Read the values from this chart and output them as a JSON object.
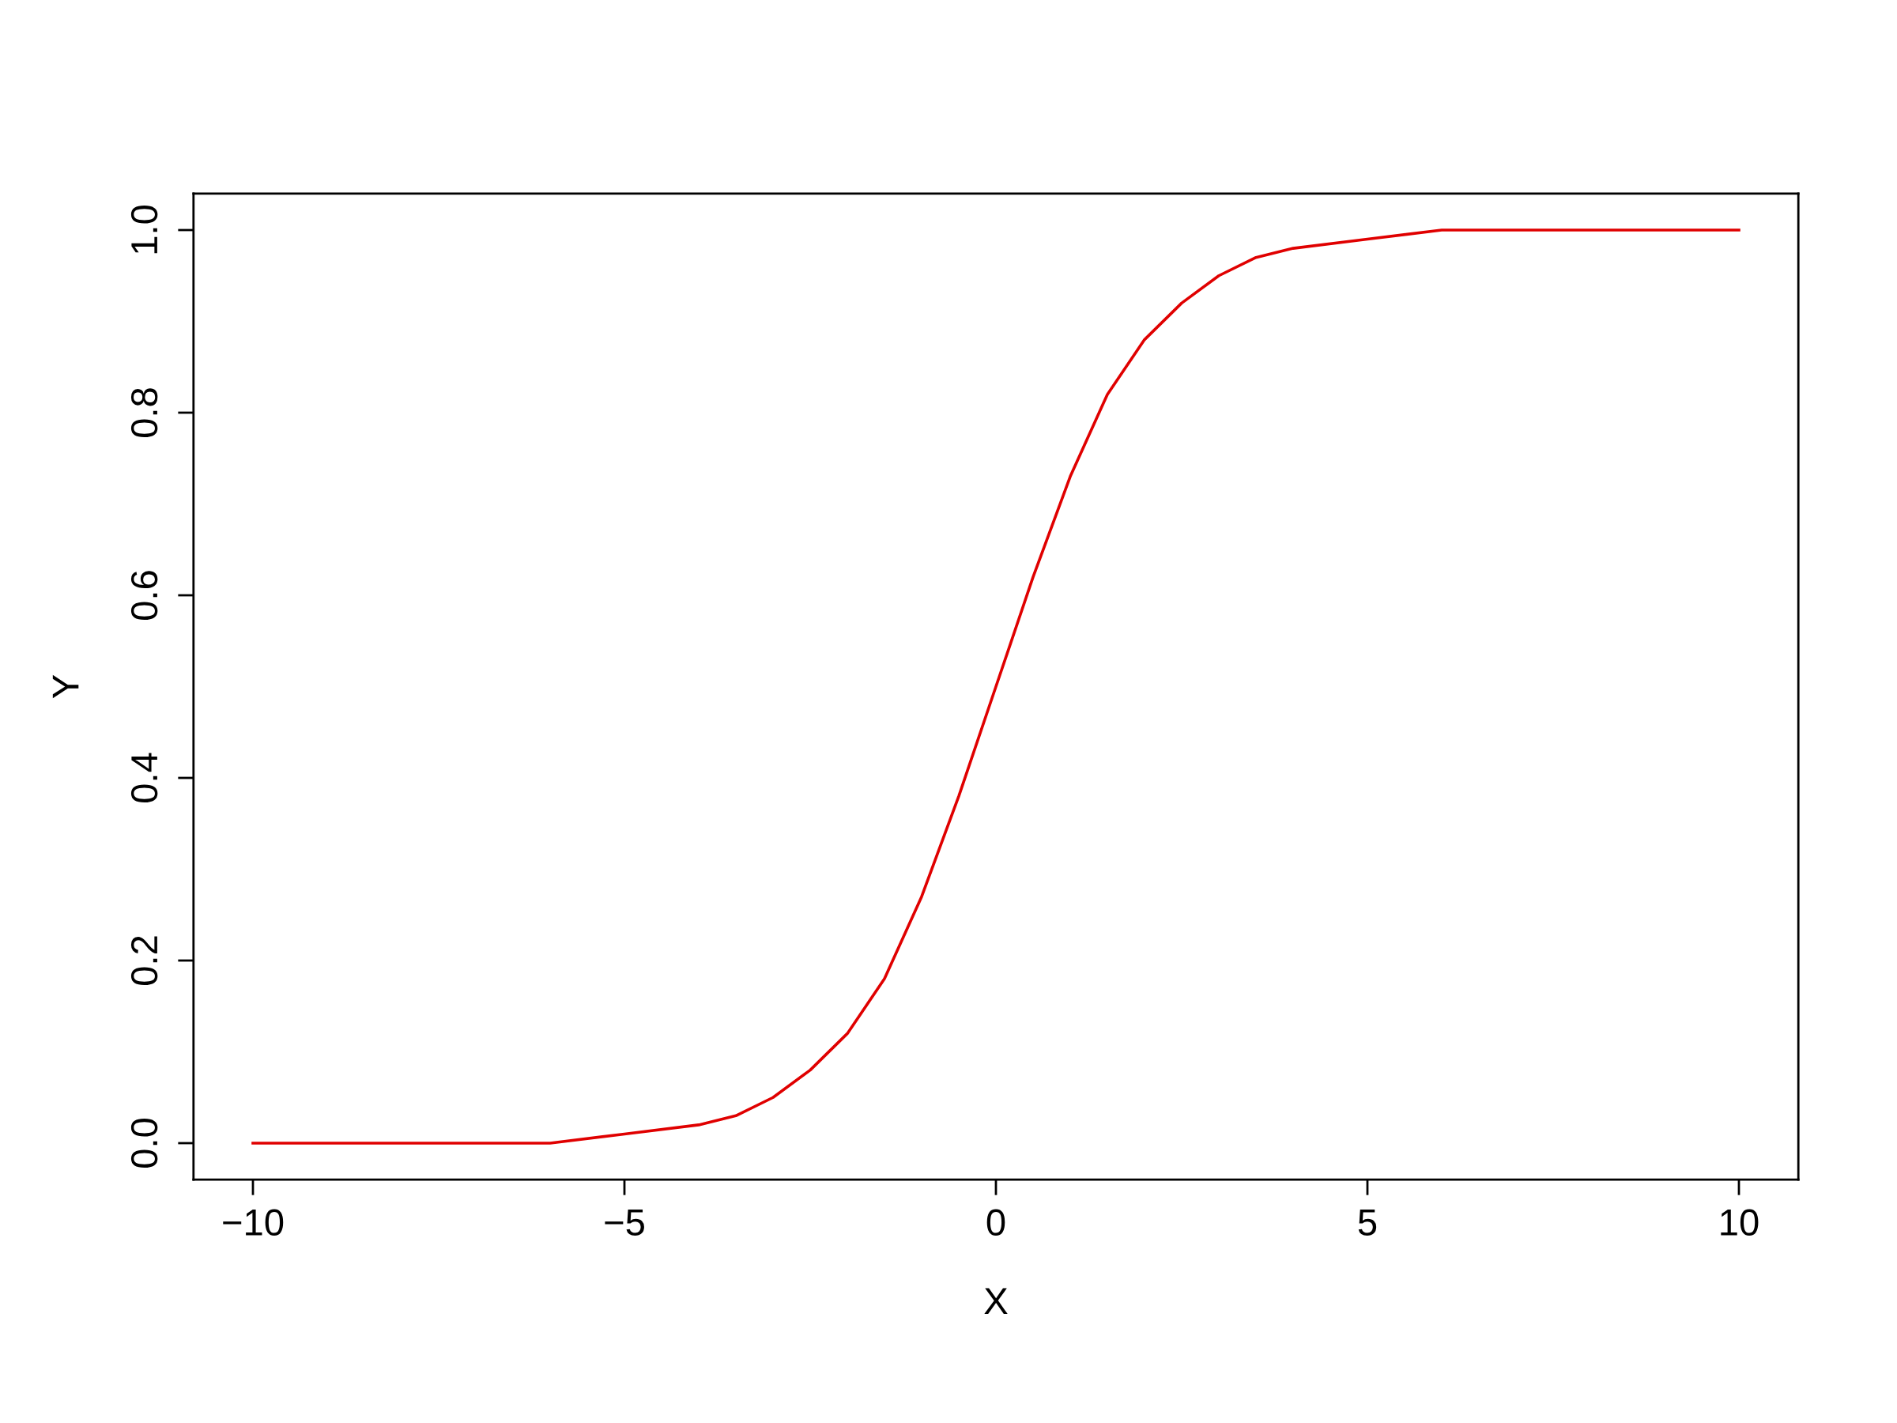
{
  "chart_data": {
    "type": "line",
    "xlabel": "X",
    "ylabel": "Y",
    "x": [
      -10,
      -8,
      -6,
      -5,
      -4,
      -3.5,
      -3,
      -2.5,
      -2,
      -1.5,
      -1,
      -0.5,
      0,
      0.5,
      1,
      1.5,
      2,
      2.5,
      3,
      3.5,
      4,
      5,
      6,
      8,
      10
    ],
    "series": [
      {
        "color": "#e00000",
        "values": [
          0.0,
          0.0,
          0.0,
          0.01,
          0.02,
          0.03,
          0.05,
          0.08,
          0.12,
          0.18,
          0.27,
          0.38,
          0.5,
          0.62,
          0.73,
          0.82,
          0.88,
          0.92,
          0.95,
          0.97,
          0.98,
          0.99,
          1.0,
          1.0,
          1.0
        ]
      }
    ],
    "xlim": [
      -10.8,
      10.8
    ],
    "ylim": [
      -0.04,
      1.04
    ],
    "xticks": [
      {
        "value": -10,
        "label": "−10"
      },
      {
        "value": -5,
        "label": "−5"
      },
      0,
      5,
      10
    ],
    "yticks": [
      {
        "value": 0,
        "label": "0.0"
      },
      {
        "value": 0.2,
        "label": "0.2"
      },
      {
        "value": 0.4,
        "label": "0.4"
      },
      {
        "value": 0.6,
        "label": "0.6"
      },
      {
        "value": 0.8,
        "label": "0.8"
      },
      {
        "value": 1,
        "label": "1.0"
      }
    ],
    "grid": false,
    "legend": false,
    "marker": "none",
    "line_style": "solid"
  }
}
